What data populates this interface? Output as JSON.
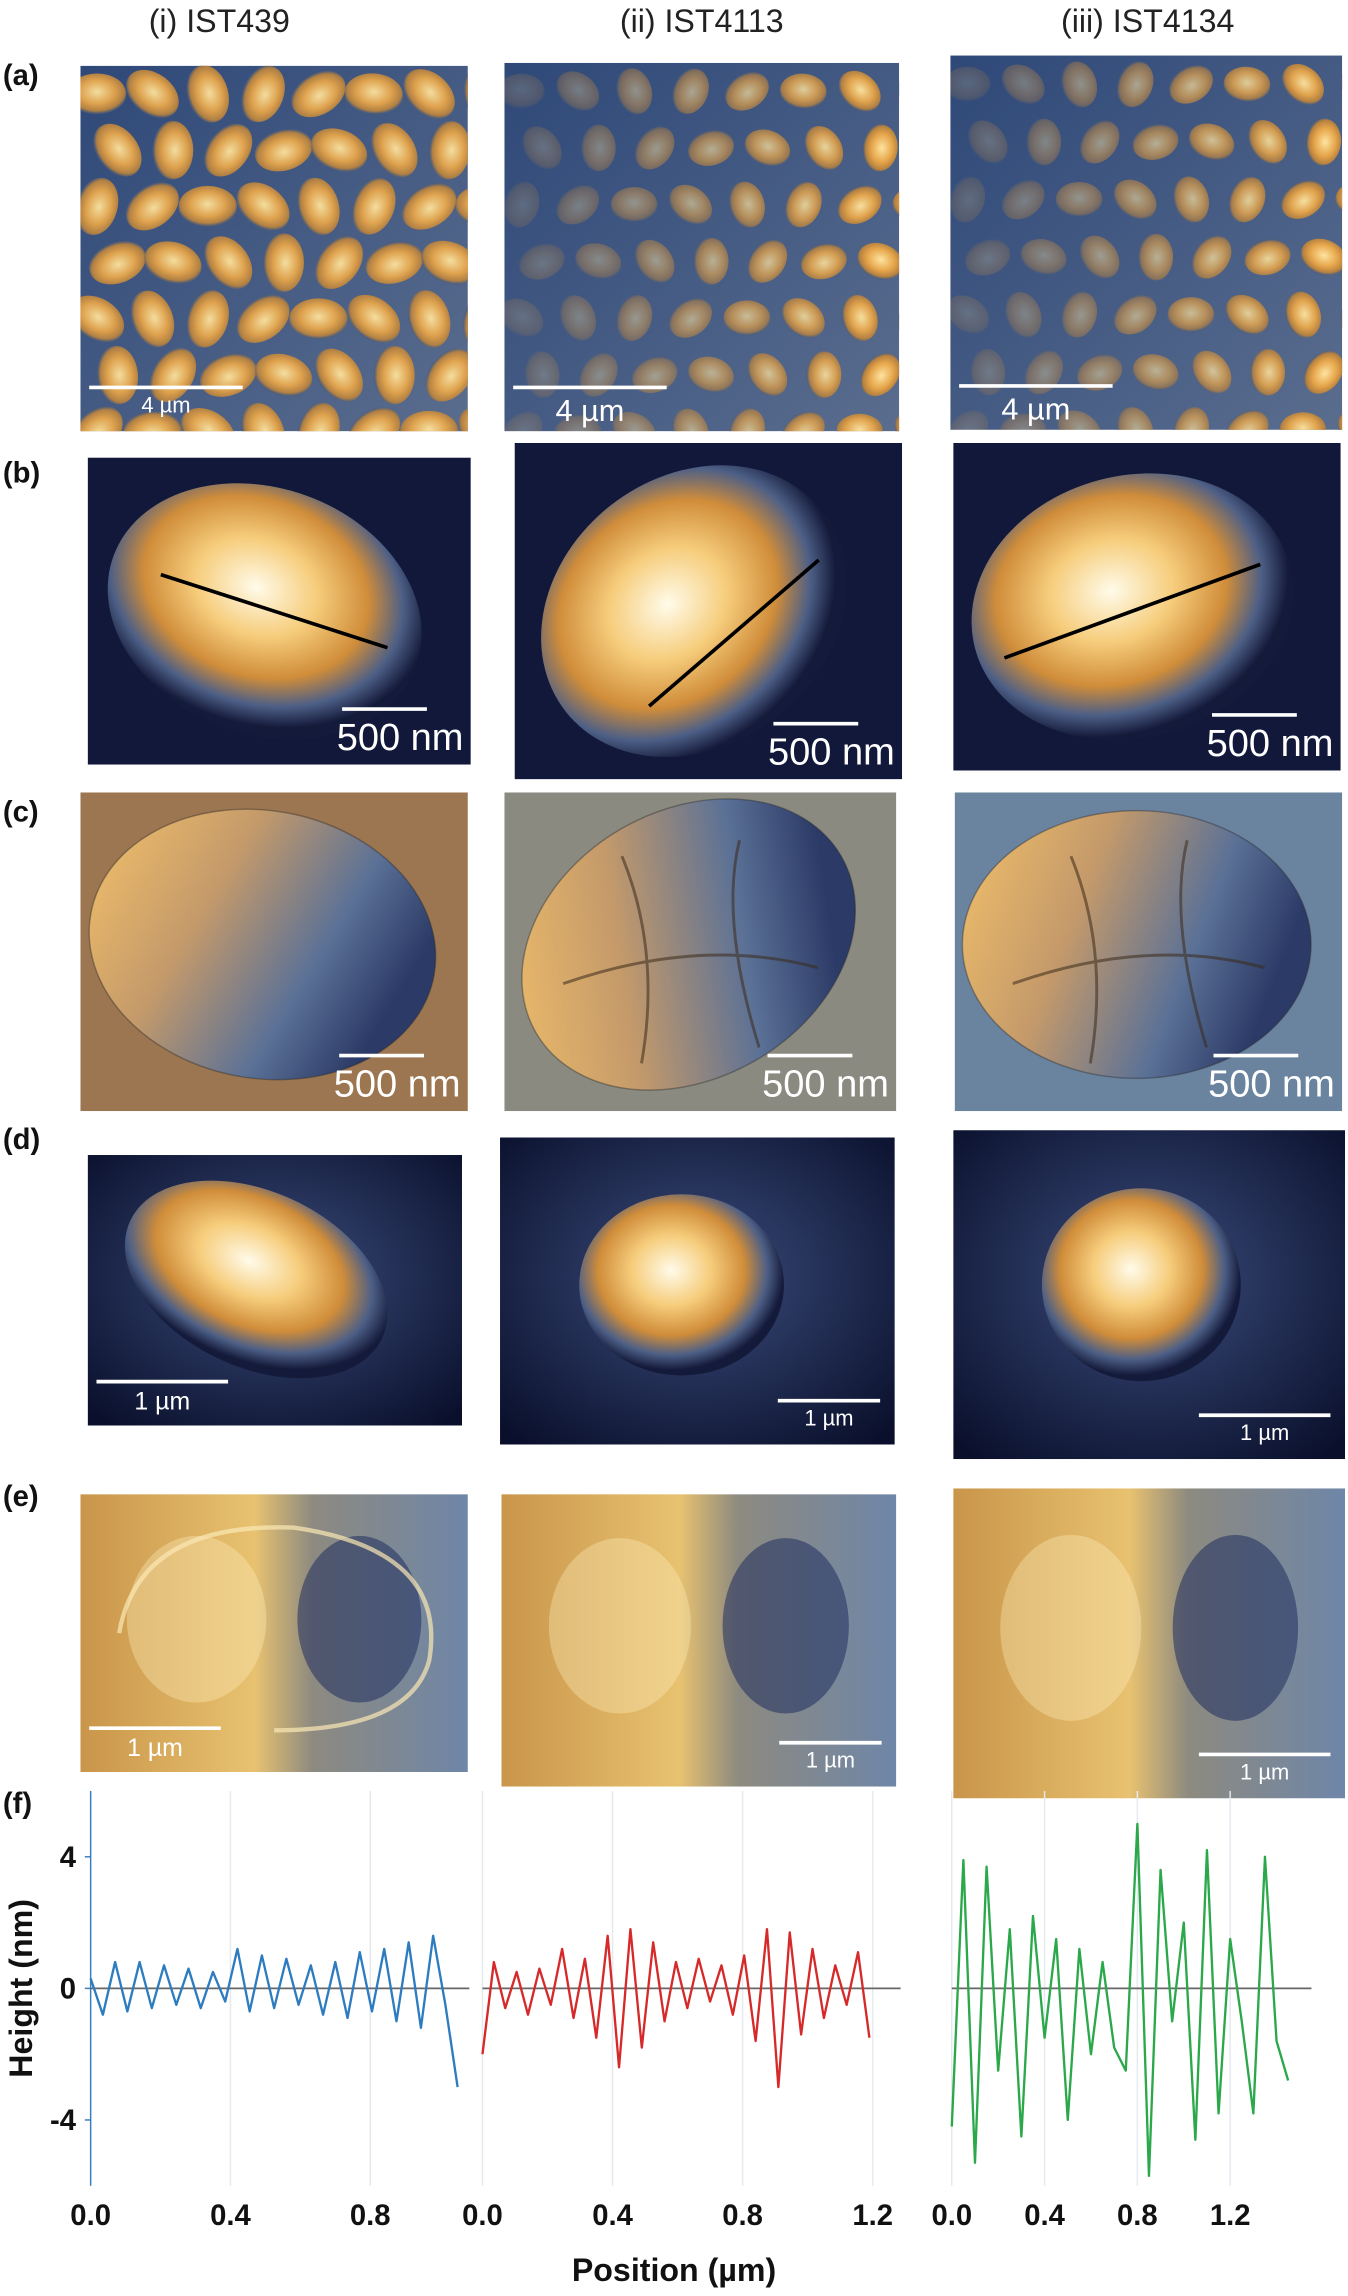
{
  "columns": [
    "(i) IST439",
    "(ii) IST4113",
    "(iii) IST4134"
  ],
  "rows": [
    {
      "label": "(a)",
      "scale_bars": [
        "4 µm",
        "4 µm",
        "4 µm"
      ]
    },
    {
      "label": "(b)",
      "scale_bars": [
        "500 nm",
        "500 nm",
        "500 nm"
      ]
    },
    {
      "label": "(c)",
      "scale_bars": [
        "500 nm",
        "500 nm",
        "500 nm"
      ]
    },
    {
      "label": "(d)",
      "scale_bars": [
        "1 µm",
        "1 µm",
        "1 µm"
      ]
    },
    {
      "label": "(e)",
      "scale_bars": [
        "1 µm",
        "1 µm",
        "1 µm"
      ]
    }
  ],
  "plot_label": "(f)",
  "y_label": "Height (nm)",
  "x_label": "Position (µm)",
  "chart_data": [
    {
      "type": "line",
      "x": [
        0,
        0.035,
        0.07,
        0.105,
        0.14,
        0.175,
        0.21,
        0.245,
        0.28,
        0.315,
        0.35,
        0.385,
        0.42,
        0.455,
        0.49,
        0.525,
        0.56,
        0.595,
        0.63,
        0.665,
        0.7,
        0.735,
        0.77,
        0.805,
        0.84,
        0.875,
        0.91,
        0.945,
        0.98,
        1.015,
        1.05
      ],
      "series": [
        {
          "color": "#2e7cc0",
          "values": [
            0.3,
            -0.8,
            0.8,
            -0.7,
            0.8,
            -0.6,
            0.7,
            -0.5,
            0.6,
            -0.6,
            0.5,
            -0.4,
            1.2,
            -0.7,
            1.0,
            -0.6,
            0.9,
            -0.5,
            0.7,
            -0.8,
            0.8,
            -0.9,
            1.1,
            -0.7,
            1.2,
            -1.0,
            1.4,
            -1.2,
            1.6,
            -0.5,
            -3.0
          ]
        }
      ],
      "xlim": [
        0,
        1.05
      ],
      "xticks": [
        {
          "value": 0,
          "label": "0.0"
        },
        {
          "value": 0.4,
          "label": "0.4"
        },
        {
          "value": 0.8,
          "label": "0.8"
        }
      ],
      "ylim": [
        -6,
        6
      ],
      "yticks": [
        -4,
        0,
        4
      ]
    },
    {
      "type": "line",
      "x": [
        0,
        0.035,
        0.07,
        0.105,
        0.14,
        0.175,
        0.21,
        0.245,
        0.28,
        0.315,
        0.35,
        0.385,
        0.42,
        0.455,
        0.49,
        0.525,
        0.56,
        0.595,
        0.63,
        0.665,
        0.7,
        0.735,
        0.77,
        0.805,
        0.84,
        0.875,
        0.91,
        0.945,
        0.98,
        1.015,
        1.05,
        1.085,
        1.12,
        1.155,
        1.19
      ],
      "series": [
        {
          "color": "#d62a2a",
          "values": [
            -2.0,
            0.8,
            -0.6,
            0.5,
            -0.8,
            0.6,
            -0.5,
            1.2,
            -0.9,
            0.9,
            -1.5,
            1.6,
            -2.4,
            1.8,
            -1.8,
            1.4,
            -1.0,
            0.8,
            -0.6,
            0.9,
            -0.4,
            0.7,
            -0.8,
            1.0,
            -1.6,
            1.8,
            -3.0,
            1.7,
            -1.4,
            1.2,
            -0.9,
            0.7,
            -0.5,
            1.1,
            -1.5
          ]
        }
      ],
      "xlim": [
        0,
        1.25
      ],
      "xticks": [
        {
          "value": 0,
          "label": "0.0"
        },
        {
          "value": 0.4,
          "label": "0.4"
        },
        {
          "value": 0.8,
          "label": "0.8"
        },
        {
          "value": 1.2,
          "label": "1.2"
        }
      ],
      "ylim": [
        -6,
        6
      ]
    },
    {
      "type": "line",
      "x": [
        0,
        0.05,
        0.1,
        0.15,
        0.2,
        0.25,
        0.3,
        0.35,
        0.4,
        0.45,
        0.5,
        0.55,
        0.6,
        0.65,
        0.7,
        0.75,
        0.8,
        0.85,
        0.9,
        0.95,
        1.0,
        1.05,
        1.1,
        1.15,
        1.2,
        1.25,
        1.3,
        1.35,
        1.4,
        1.45
      ],
      "series": [
        {
          "color": "#2aa84a",
          "values": [
            -4.2,
            3.9,
            -5.3,
            3.7,
            -2.5,
            1.8,
            -4.5,
            2.2,
            -1.5,
            1.5,
            -4.0,
            1.2,
            -2.0,
            0.8,
            -1.8,
            -2.5,
            5.0,
            -5.7,
            3.6,
            -1.0,
            2.0,
            -4.6,
            4.2,
            -3.8,
            1.5,
            -1.0,
            -3.8,
            4.0,
            -1.6,
            -2.8
          ]
        }
      ],
      "xlim": [
        0,
        1.5
      ],
      "xticks": [
        {
          "value": 0,
          "label": "0.0"
        },
        {
          "value": 0.4,
          "label": "0.4"
        },
        {
          "value": 0.8,
          "label": "0.8"
        },
        {
          "value": 1.2,
          "label": "1.2"
        }
      ],
      "ylim": [
        -6,
        6
      ]
    }
  ]
}
